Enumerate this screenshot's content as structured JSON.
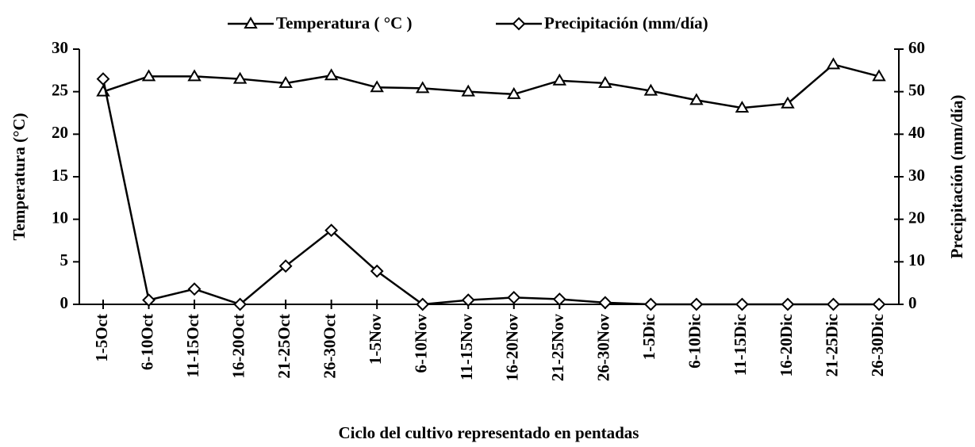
{
  "chart_data": {
    "type": "line",
    "x_label": "Ciclo del cultivo representado en pentadas",
    "y_label": "Temperatura (°C)",
    "y2_label": "Precipitación (mm/día)",
    "categories": [
      "1-5Oct",
      "6-10Oct",
      "11-15Oct",
      "16-20Oct",
      "21-25Oct",
      "26-30Oct",
      "1-5Nov",
      "6-10Nov",
      "11-15Nov",
      "16-20Nov",
      "21-25Nov",
      "26-30Nov",
      "1-5Dic",
      "6-10Dic",
      "11-15Dic",
      "16-20Dic",
      "21-25Dic",
      "26-30Dic"
    ],
    "series": [
      {
        "name": "Temperatura ( °C )",
        "color": "#000000",
        "marker": "triangle",
        "axis": "y",
        "values": [
          25.0,
          26.8,
          26.8,
          26.5,
          26.0,
          26.9,
          25.5,
          25.4,
          25.0,
          24.7,
          26.3,
          26.0,
          25.1,
          24.0,
          23.1,
          23.6,
          28.2,
          26.8
        ]
      },
      {
        "name": "Precipitación (mm/día)",
        "color": "#000000",
        "marker": "diamond",
        "axis": "y2",
        "values": [
          53,
          1,
          3.6,
          0,
          9,
          17.4,
          7.8,
          0,
          1,
          1.6,
          1.2,
          0.4,
          0,
          0,
          0,
          0,
          0,
          0
        ]
      }
    ],
    "ylim": [
      0,
      30
    ],
    "yticks": [
      0,
      5,
      10,
      15,
      20,
      25,
      30
    ],
    "y2lim": [
      0,
      60
    ],
    "y2ticks": [
      0,
      10,
      20,
      30,
      40,
      50,
      60
    ],
    "legend": "top"
  }
}
